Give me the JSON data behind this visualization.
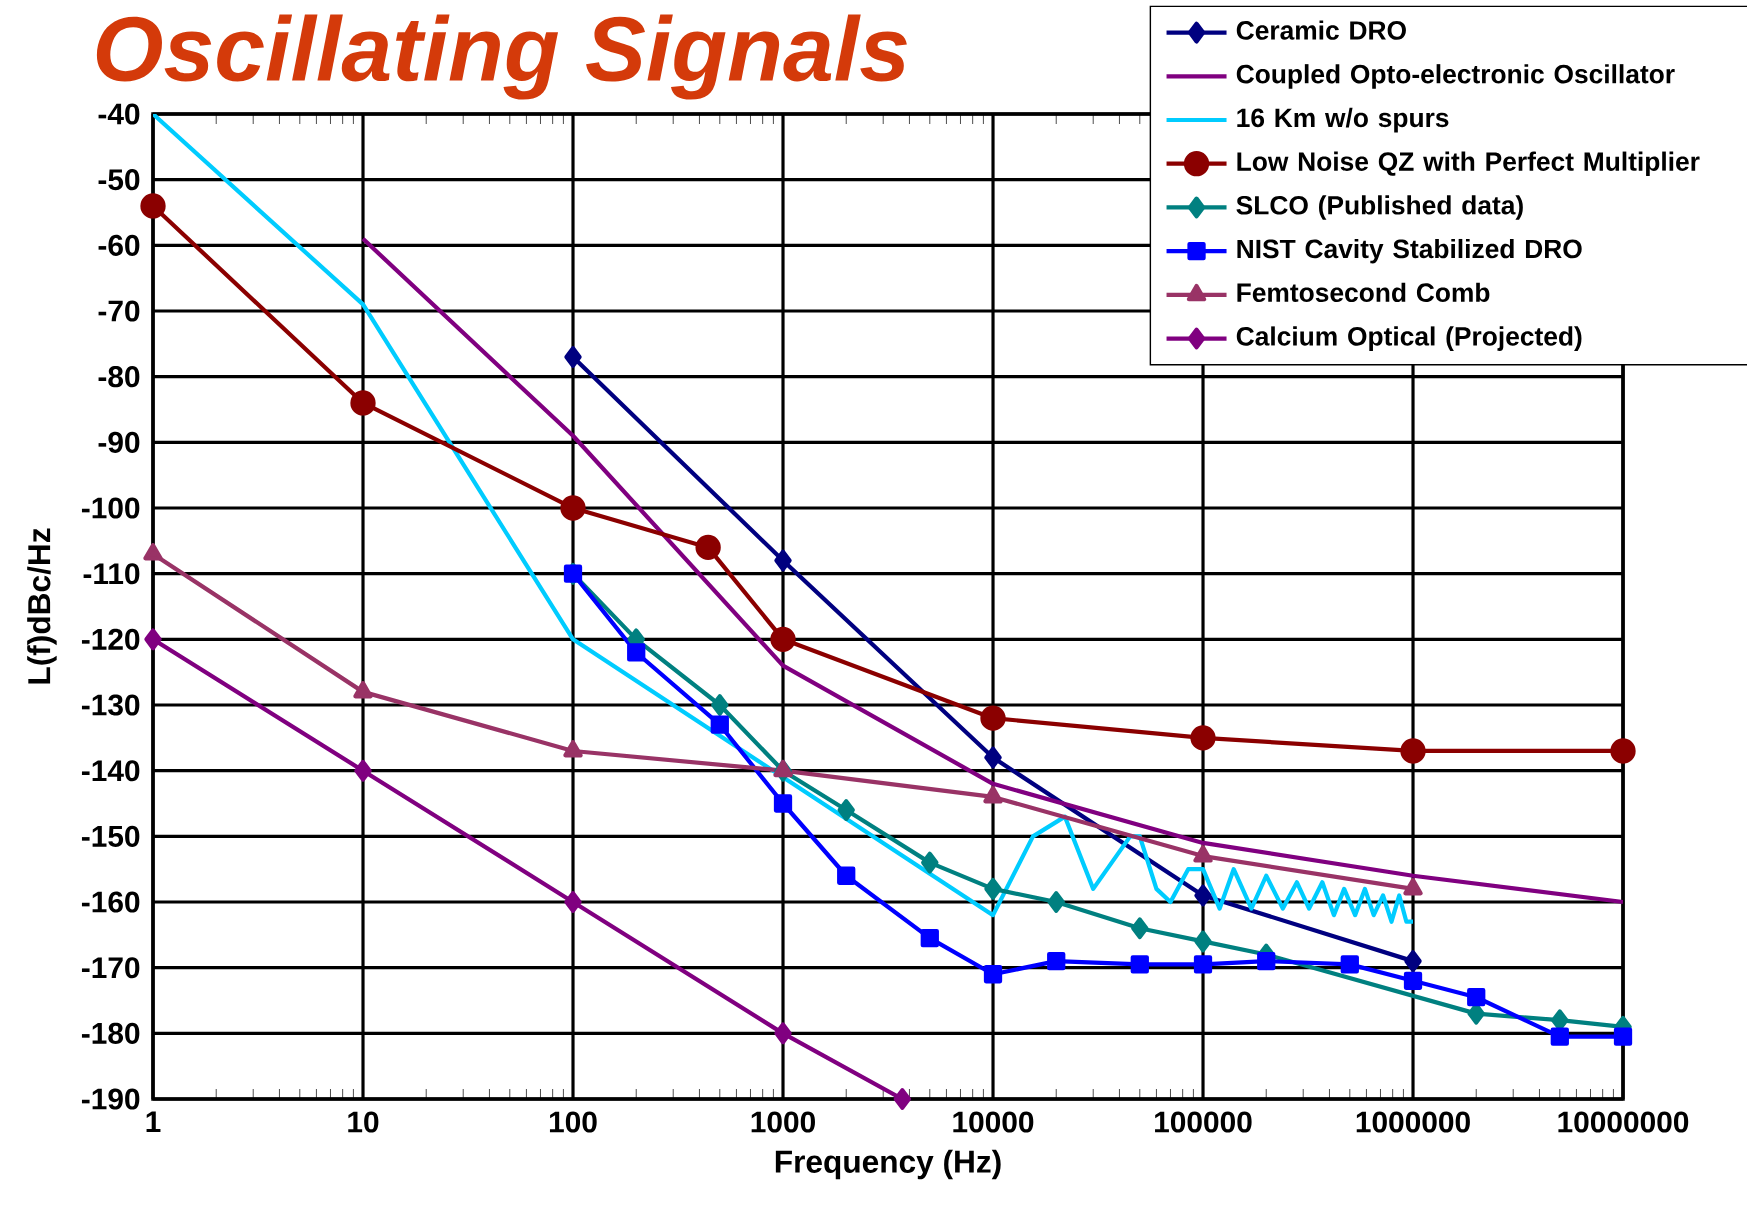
{
  "chart_data": {
    "type": "line",
    "title": "Oscillating Signals",
    "xlabel": "Frequency (Hz)",
    "ylabel": "L(f)dBc/Hz",
    "log": "x",
    "grid": true,
    "legend": "top right",
    "line_style": "solid",
    "xlim": [
      1,
      10000000
    ],
    "xticks": [
      1,
      10,
      100,
      1000,
      10000,
      100000,
      1000000,
      10000000
    ],
    "ylim": [
      -190,
      -40
    ],
    "yticks": [
      -190,
      -180,
      -170,
      -160,
      -150,
      -140,
      -130,
      -120,
      -110,
      -100,
      -90,
      -80,
      -70,
      -60,
      -50,
      -40
    ],
    "series": [
      {
        "name": "Ceramic DRO",
        "color": "#000080",
        "marker": "diamond",
        "x": [
          100,
          1000,
          10000,
          100000,
          1000000
        ],
        "values": [
          -77,
          -108,
          -138,
          -159,
          -169
        ]
      },
      {
        "name": "Coupled Opto-electronic Oscillator",
        "color": "#800080",
        "marker": "none",
        "x": [
          10,
          100,
          1000,
          10000,
          100000,
          1000000,
          10000000
        ],
        "values": [
          -59,
          -89,
          -124,
          -142,
          -151,
          -156,
          -160
        ]
      },
      {
        "name": "16 Km w/o spurs",
        "color": "#00ccff",
        "marker": "none",
        "x": [
          1,
          10,
          100,
          1000,
          10000,
          15500,
          22000,
          30000,
          45000,
          50000,
          60000,
          70000,
          85000,
          100000,
          120000,
          140000,
          170000,
          200000,
          240000,
          280000,
          320000,
          370000,
          420000,
          470000,
          530000,
          590000,
          650000,
          720000,
          790000,
          860000,
          930000,
          1000000
        ],
        "values": [
          -40,
          -69,
          -120,
          -141,
          -162,
          -150,
          -147,
          -158,
          -150,
          -150,
          -158,
          -160,
          -155,
          -155,
          -161,
          -155,
          -161,
          -156,
          -161,
          -157,
          -161,
          -157,
          -162,
          -158,
          -162,
          -158,
          -162,
          -159,
          -163,
          -159,
          -163,
          -163
        ]
      },
      {
        "name": "Low Noise QZ with Perfect Multiplier",
        "color": "#8b0000",
        "marker": "circle",
        "x": [
          1,
          10,
          100,
          440,
          1000,
          10000,
          100000,
          1000000,
          10000000
        ],
        "values": [
          -54,
          -84,
          -100,
          -106,
          -120,
          -132,
          -135,
          -137,
          -137
        ]
      },
      {
        "name": "SLCO (Published data)",
        "color": "#008080",
        "marker": "diamond",
        "x": [
          100,
          200,
          500,
          1000,
          2000,
          5000,
          10000,
          20000,
          50000,
          100000,
          200000,
          2000000,
          5000000,
          10000000
        ],
        "values": [
          -110,
          -120,
          -130,
          -140,
          -146,
          -154,
          -158,
          -160,
          -164,
          -166,
          -168,
          -177,
          -178,
          -179
        ]
      },
      {
        "name": "NIST Cavity Stabilized DRO",
        "color": "#0000ff",
        "marker": "square",
        "x": [
          100,
          200,
          500,
          1000,
          2000,
          5000,
          10000,
          20000,
          50000,
          100000,
          200000,
          500000,
          1000000,
          2000000,
          5000000,
          10000000
        ],
        "values": [
          -110,
          -122,
          -133,
          -145,
          -156,
          -165.5,
          -171,
          -169,
          -169.5,
          -169.5,
          -169,
          -169.5,
          -172,
          -174.5,
          -180.5,
          -180.5
        ]
      },
      {
        "name": "Femtosecond Comb",
        "color": "#993366",
        "marker": "triangle",
        "x": [
          1,
          10,
          100,
          1000,
          10000,
          100000,
          1000000
        ],
        "values": [
          -107,
          -128,
          -137,
          -140,
          -144,
          -153,
          -158
        ]
      },
      {
        "name": "Calcium Optical (Projected)",
        "color": "#800080",
        "marker": "diamond",
        "x": [
          1,
          10,
          100,
          1000,
          3700
        ],
        "values": [
          -120,
          -140,
          -160,
          -180,
          -190
        ]
      }
    ]
  }
}
